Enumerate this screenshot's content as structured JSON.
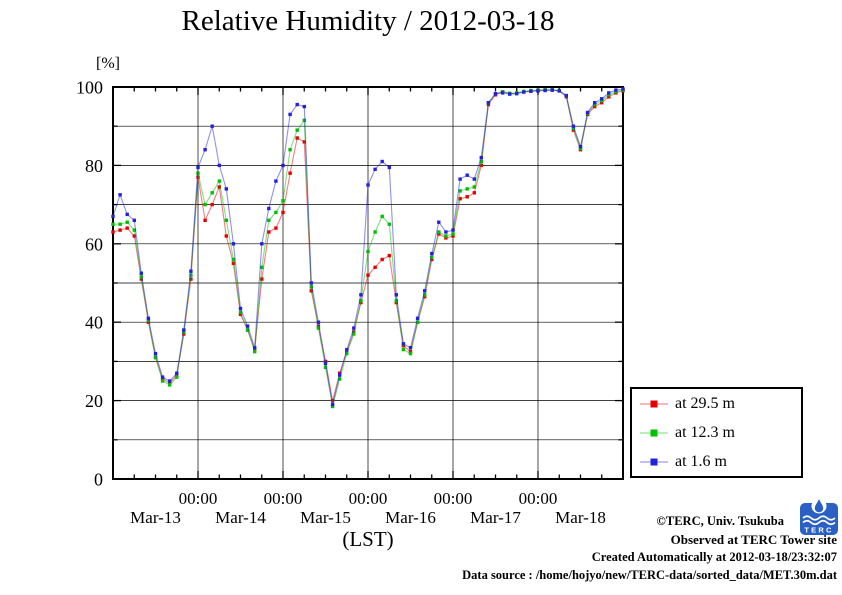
{
  "title": "Relative Humidity / 2012-03-18",
  "y_axis": {
    "unit_label": "[%]",
    "tick_labels": [
      "0",
      "20",
      "40",
      "60",
      "80",
      "100"
    ],
    "range": [
      0,
      100
    ]
  },
  "x_axis": {
    "label": "(LST)",
    "time_tick_label": "00:00",
    "day_labels": [
      "Mar-13",
      "Mar-14",
      "Mar-15",
      "Mar-16",
      "Mar-17",
      "Mar-18"
    ]
  },
  "legend": {
    "entries": [
      {
        "label": "at 29.5 m",
        "color": "#e60000"
      },
      {
        "label": "at 12.3 m",
        "color": "#00c000"
      },
      {
        "label": "at 1.6 m",
        "color": "#2222dd"
      }
    ]
  },
  "footer": {
    "copyright": "©TERC, Univ. Tsukuba",
    "observed": "Observed at TERC Tower site",
    "created": "Created Automatically at 2012-03-18/23:32:07",
    "data_source": "Data source : /home/hojyo/new/TERC-data/sorted_data/MET.30m.dat"
  },
  "logo_text": "TERC",
  "chart_data": {
    "type": "line",
    "title": "Relative Humidity / 2012-03-18",
    "xlabel": "(LST)",
    "ylabel": "[%]",
    "x_unit": "hours since 2012-03-13 00:00 LST",
    "xlim_hours": [
      0,
      144
    ],
    "ylim": [
      0,
      100
    ],
    "grid": "on",
    "legend_position": "right-outside",
    "y_major_ticks": [
      0,
      20,
      40,
      60,
      80,
      100
    ],
    "y_minor_step": 10,
    "x_major_tick_hours": [
      24,
      48,
      72,
      96,
      120
    ],
    "x_major_tick_label": "00:00",
    "x_minor_step_hours": 6,
    "x_day_label_hours": [
      12,
      36,
      60,
      84,
      108,
      132
    ],
    "x_day_labels": [
      "Mar-13",
      "Mar-14",
      "Mar-15",
      "Mar-16",
      "Mar-17",
      "Mar-18"
    ],
    "x": [
      0,
      2,
      4,
      6,
      8,
      10,
      12,
      14,
      16,
      18,
      20,
      22,
      24,
      26,
      28,
      30,
      32,
      34,
      36,
      38,
      40,
      42,
      44,
      46,
      48,
      50,
      52,
      54,
      56,
      58,
      60,
      62,
      64,
      66,
      68,
      70,
      72,
      74,
      76,
      78,
      80,
      82,
      84,
      86,
      88,
      90,
      92,
      94,
      96,
      98,
      100,
      102,
      104,
      106,
      108,
      110,
      112,
      114,
      116,
      118,
      120,
      122,
      124,
      126,
      128,
      130,
      132,
      134,
      136,
      138,
      140,
      142,
      144
    ],
    "series": [
      {
        "name": "at 29.5 m",
        "height_m": 29.5,
        "color": "#e60000",
        "values": [
          63,
          63.5,
          64,
          62,
          51,
          40,
          31,
          25.5,
          24.5,
          26.5,
          37,
          51,
          77,
          66,
          70,
          74.5,
          62,
          55,
          42,
          38,
          33,
          51,
          63,
          64,
          68,
          78,
          87,
          86,
          48,
          39,
          30,
          20,
          27,
          32.5,
          37.5,
          45,
          52,
          54,
          56,
          57,
          45,
          34,
          32.5,
          40,
          46.5,
          56,
          62.5,
          61.5,
          62,
          71.5,
          72,
          73,
          80,
          95.5,
          98,
          98.8,
          98.3,
          98.4,
          98.8,
          99,
          99.1,
          99.2,
          99.2,
          99,
          97.5,
          89,
          84,
          93,
          95,
          96,
          97.5,
          98.5,
          99
        ]
      },
      {
        "name": "at 12.3 m",
        "height_m": 12.3,
        "color": "#00c000",
        "values": [
          65,
          65,
          65.5,
          63.5,
          51.5,
          40.5,
          31,
          25,
          24,
          26,
          37.5,
          52,
          78,
          70,
          73,
          76,
          66,
          56,
          42.5,
          38,
          32.5,
          54,
          66,
          68,
          71,
          84,
          89,
          91.5,
          49,
          38.5,
          28.5,
          18.5,
          25.5,
          32,
          37,
          45.5,
          58,
          63,
          67,
          65,
          45.5,
          33,
          32,
          40,
          47,
          56.5,
          63,
          62,
          62.5,
          73.5,
          74,
          74.5,
          81,
          96,
          98.3,
          98.8,
          98.4,
          98.5,
          98.9,
          99.1,
          99.2,
          99.3,
          99.3,
          99.1,
          97.8,
          89.5,
          84.3,
          93.3,
          95.5,
          96.5,
          98,
          98.8,
          99.2
        ]
      },
      {
        "name": "at 1.6 m",
        "height_m": 1.6,
        "color": "#2222dd",
        "values": [
          67,
          72.5,
          67.5,
          66,
          52.5,
          41,
          32,
          26,
          25,
          27,
          38,
          53,
          79.5,
          84,
          90,
          80,
          74,
          60,
          43.5,
          39,
          33.5,
          60,
          69,
          76,
          80,
          93,
          95.5,
          95,
          50,
          40,
          29.5,
          19,
          26.5,
          33,
          38.5,
          47,
          75,
          79,
          81,
          79.5,
          47,
          34.5,
          33.5,
          41,
          48,
          57.5,
          65.5,
          63,
          63.5,
          76.5,
          77.5,
          76.5,
          82,
          96,
          98.3,
          98.5,
          98.2,
          98.3,
          98.7,
          98.9,
          99,
          99.1,
          99.2,
          99,
          97.8,
          90,
          84.8,
          93.5,
          96,
          97,
          98.5,
          99.2,
          99.5
        ]
      }
    ]
  }
}
